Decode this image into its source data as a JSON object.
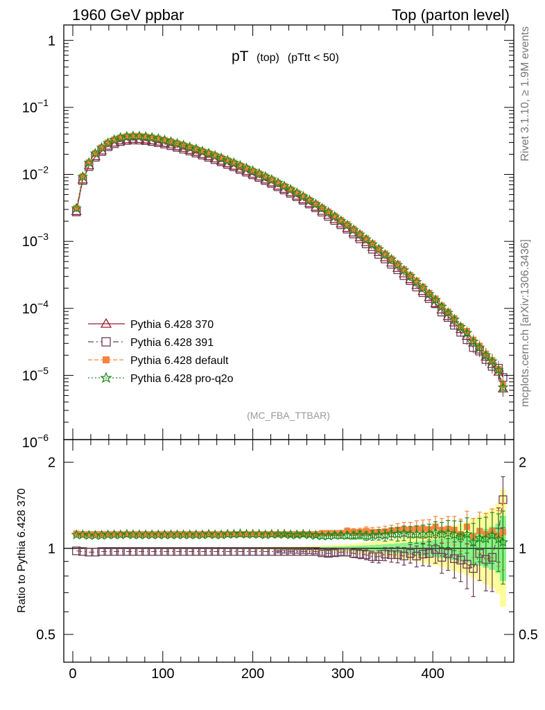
{
  "header": {
    "left": "1960 GeV ppbar",
    "right": "Top (parton level)"
  },
  "side": {
    "rivet": "Rivet 3.1.10, ≥ 1.9M events",
    "mcplots": "mcplots.cern.ch [arXiv:1306.3436]"
  },
  "chart_data": {
    "type": "line",
    "title": {
      "main": "pT",
      "sub1": "(top)",
      "sub2": "(pTtt < 50)"
    },
    "watermark": "(MC_FBA_TTBAR)",
    "xlim": [
      -10,
      490
    ],
    "x_ticks": [
      0,
      100,
      200,
      300,
      400
    ],
    "upper": {
      "yscale": "log",
      "ylim": [
        1.1e-06,
        1.7
      ],
      "y_tick_labels": [
        {
          "v": 1,
          "label": "1",
          "exp": ""
        },
        {
          "v": 0.1,
          "label": "10",
          "exp": "−1"
        },
        {
          "v": 0.01,
          "label": "10",
          "exp": "−2"
        },
        {
          "v": 0.001,
          "label": "10",
          "exp": "−3"
        },
        {
          "v": 0.0001,
          "label": "10",
          "exp": "−4"
        },
        {
          "v": 1e-05,
          "label": "10",
          "exp": "−5"
        },
        {
          "v": 1e-06,
          "label": "10",
          "exp": "−6"
        }
      ]
    },
    "lower": {
      "ylabel": "Ratio to Pythia 6.428 370",
      "yscale": "log",
      "ylim": [
        0.4,
        2.4
      ],
      "y_tick_labels": [
        {
          "v": 0.5,
          "label": "0.5"
        },
        {
          "v": 1,
          "label": "1"
        },
        {
          "v": 2,
          "label": "2"
        }
      ]
    },
    "x": [
      4,
      11,
      18,
      25,
      32,
      39,
      46,
      53,
      60,
      67,
      74,
      81,
      88,
      95,
      102,
      109,
      116,
      123,
      130,
      137,
      144,
      151,
      158,
      165,
      172,
      179,
      186,
      193,
      200,
      207,
      214,
      221,
      228,
      235,
      242,
      249,
      256,
      263,
      270,
      277,
      284,
      291,
      298,
      305,
      312,
      319,
      326,
      333,
      340,
      347,
      354,
      361,
      368,
      375,
      382,
      389,
      396,
      403,
      410,
      417,
      424,
      431,
      438,
      445,
      452,
      459,
      466,
      473,
      478
    ],
    "reference_band": {
      "name": "Pythia 6.428 370",
      "rel_err": [
        0.003,
        0.003,
        0.003,
        0.003,
        0.003,
        0.003,
        0.003,
        0.003,
        0.003,
        0.003,
        0.003,
        0.003,
        0.003,
        0.003,
        0.003,
        0.003,
        0.003,
        0.003,
        0.003,
        0.003,
        0.003,
        0.003,
        0.003,
        0.003,
        0.003,
        0.004,
        0.004,
        0.004,
        0.005,
        0.005,
        0.005,
        0.006,
        0.006,
        0.007,
        0.007,
        0.008,
        0.009,
        0.01,
        0.011,
        0.012,
        0.013,
        0.015,
        0.016,
        0.018,
        0.02,
        0.022,
        0.024,
        0.027,
        0.03,
        0.033,
        0.037,
        0.041,
        0.045,
        0.05,
        0.055,
        0.061,
        0.067,
        0.074,
        0.082,
        0.09,
        0.1,
        0.11,
        0.12,
        0.135,
        0.15,
        0.17,
        0.19,
        0.22,
        0.3
      ]
    },
    "series": [
      {
        "name": "Pythia 6.428 370",
        "color": "#9b1a2e",
        "marker": "triangle-open",
        "dash": "",
        "values": [
          0.0028,
          0.0083,
          0.0135,
          0.0185,
          0.0225,
          0.0265,
          0.0295,
          0.0318,
          0.033,
          0.0335,
          0.0334,
          0.0328,
          0.0318,
          0.0305,
          0.0291,
          0.0276,
          0.026,
          0.0245,
          0.0229,
          0.0214,
          0.0199,
          0.0185,
          0.0171,
          0.0158,
          0.0145,
          0.0133,
          0.0121,
          0.0111,
          0.0101,
          0.0092,
          0.0083,
          0.0075,
          0.0067,
          0.006,
          0.00535,
          0.00475,
          0.0042,
          0.0037,
          0.00325,
          0.00283,
          0.00246,
          0.00213,
          0.00183,
          0.00157,
          0.00134,
          0.00114,
          0.000965,
          0.000815,
          0.000685,
          0.000573,
          0.000478,
          0.000397,
          0.000328,
          0.00027,
          0.000221,
          0.00018,
          0.000146,
          0.000118,
          9.5e-05,
          7.6e-05,
          6.1e-05,
          4.85e-05,
          3.85e-05,
          3.05e-05,
          2.4e-05,
          1.88e-05,
          1.46e-05,
          1.12e-05,
          6.3e-06
        ],
        "ratio": [
          1.0,
          1.0,
          1.0,
          1.0,
          1.0,
          1.0,
          1.0,
          1.0,
          1.0,
          1.0,
          1.0,
          1.0,
          1.0,
          1.0,
          1.0,
          1.0,
          1.0,
          1.0,
          1.0,
          1.0,
          1.0,
          1.0,
          1.0,
          1.0,
          1.0,
          1.0,
          1.0,
          1.0,
          1.0,
          1.0,
          1.0,
          1.0,
          1.0,
          1.0,
          1.0,
          1.0,
          1.0,
          1.0,
          1.0,
          1.0,
          1.0,
          1.0,
          1.0,
          1.0,
          1.0,
          1.0,
          1.0,
          1.0,
          1.0,
          1.0,
          1.0,
          1.0,
          1.0,
          1.0,
          1.0,
          1.0,
          1.0,
          1.0,
          1.0,
          1.0,
          1.0,
          1.0,
          1.0,
          1.0,
          1.0,
          1.0,
          1.0,
          1.0,
          1.0
        ]
      },
      {
        "name": "Pythia 6.428 391",
        "color": "#6b3a52",
        "marker": "square-open",
        "dash": "8,4,2,4",
        "values": [
          0.00275,
          0.0081,
          0.0131,
          0.018,
          0.0219,
          0.0258,
          0.0287,
          0.0309,
          0.0321,
          0.0326,
          0.0325,
          0.0319,
          0.0309,
          0.0297,
          0.0283,
          0.0268,
          0.0253,
          0.0238,
          0.0223,
          0.0208,
          0.0194,
          0.018,
          0.0166,
          0.0154,
          0.0141,
          0.013,
          0.0118,
          0.0108,
          0.00985,
          0.00898,
          0.00809,
          0.00731,
          0.00653,
          0.00585,
          0.00522,
          0.00463,
          0.0041,
          0.00361,
          0.00317,
          0.00273,
          0.00236,
          0.00205,
          0.00177,
          0.00152,
          0.00129,
          0.00109,
          0.000917,
          0.000763,
          0.000639,
          0.000546,
          0.000455,
          0.000377,
          0.000308,
          0.000259,
          0.000208,
          0.000172,
          0.00014,
          0.000117,
          8.8e-05,
          7.3e-05,
          5.6e-05,
          4.4e-05,
          3.4e-05,
          2.6e-05,
          2.3e-05,
          1.72e-05,
          1.36e-05,
          1.28e-05,
          9.3e-06
        ],
        "ratio": [
          0.98,
          0.975,
          0.97,
          0.97,
          0.975,
          0.975,
          0.975,
          0.975,
          0.975,
          0.975,
          0.975,
          0.975,
          0.975,
          0.975,
          0.975,
          0.975,
          0.975,
          0.975,
          0.975,
          0.975,
          0.975,
          0.975,
          0.975,
          0.975,
          0.975,
          0.975,
          0.975,
          0.975,
          0.975,
          0.975,
          0.975,
          0.975,
          0.975,
          0.975,
          0.975,
          0.975,
          0.975,
          0.975,
          0.975,
          0.965,
          0.96,
          0.965,
          0.97,
          0.97,
          0.96,
          0.955,
          0.95,
          0.935,
          0.935,
          0.955,
          0.95,
          0.95,
          0.94,
          0.96,
          0.94,
          0.955,
          0.96,
          0.99,
          0.93,
          0.96,
          0.92,
          0.91,
          0.88,
          0.85,
          0.96,
          0.915,
          0.93,
          1.14,
          1.48
        ],
        "ratio_err": [
          0.005,
          0.005,
          0.005,
          0.005,
          0.005,
          0.005,
          0.005,
          0.005,
          0.005,
          0.005,
          0.005,
          0.005,
          0.005,
          0.005,
          0.005,
          0.005,
          0.005,
          0.005,
          0.005,
          0.005,
          0.005,
          0.005,
          0.005,
          0.005,
          0.006,
          0.006,
          0.007,
          0.007,
          0.008,
          0.008,
          0.009,
          0.01,
          0.011,
          0.012,
          0.013,
          0.014,
          0.015,
          0.016,
          0.018,
          0.02,
          0.022,
          0.024,
          0.026,
          0.029,
          0.032,
          0.035,
          0.038,
          0.042,
          0.046,
          0.05,
          0.055,
          0.06,
          0.066,
          0.072,
          0.079,
          0.086,
          0.094,
          0.103,
          0.112,
          0.122,
          0.133,
          0.145,
          0.158,
          0.172,
          0.188,
          0.205,
          0.224,
          0.245,
          0.3
        ]
      },
      {
        "name": "Pythia 6.428 default",
        "color": "#f7833c",
        "marker": "square-filled",
        "dash": "6,3",
        "values": [
          0.00315,
          0.0093,
          0.0151,
          0.0207,
          0.0252,
          0.0297,
          0.033,
          0.0356,
          0.037,
          0.0375,
          0.0374,
          0.0367,
          0.0356,
          0.0342,
          0.0326,
          0.0309,
          0.0291,
          0.0274,
          0.0256,
          0.024,
          0.0223,
          0.0207,
          0.0192,
          0.0177,
          0.0162,
          0.0149,
          0.0136,
          0.0124,
          0.0113,
          0.0103,
          0.0093,
          0.0084,
          0.0075,
          0.00672,
          0.00599,
          0.00532,
          0.0047,
          0.00414,
          0.00364,
          0.00319,
          0.00278,
          0.00241,
          0.00207,
          0.0018,
          0.00153,
          0.0013,
          0.00111,
          0.000933,
          0.000784,
          0.000656,
          0.000551,
          0.000461,
          0.000382,
          0.000313,
          0.000259,
          0.00021,
          0.00017,
          0.00014,
          0.00011,
          8.9e-05,
          7.1e-05,
          5.4e-05,
          4.6e-05,
          3.4e-05,
          2.77e-05,
          2.1e-05,
          1.68e-05,
          1.24e-05,
          7.2e-06
        ],
        "ratio": [
          1.125,
          1.12,
          1.12,
          1.12,
          1.12,
          1.12,
          1.12,
          1.12,
          1.12,
          1.12,
          1.12,
          1.12,
          1.12,
          1.12,
          1.12,
          1.12,
          1.12,
          1.12,
          1.12,
          1.12,
          1.12,
          1.12,
          1.12,
          1.12,
          1.12,
          1.12,
          1.12,
          1.12,
          1.12,
          1.12,
          1.12,
          1.12,
          1.12,
          1.12,
          1.12,
          1.12,
          1.12,
          1.12,
          1.12,
          1.13,
          1.13,
          1.13,
          1.13,
          1.15,
          1.14,
          1.14,
          1.15,
          1.14,
          1.14,
          1.145,
          1.15,
          1.16,
          1.165,
          1.16,
          1.17,
          1.17,
          1.165,
          1.19,
          1.16,
          1.17,
          1.16,
          1.12,
          1.19,
          1.1,
          1.15,
          1.12,
          1.15,
          1.11,
          1.14
        ],
        "ratio_err": [
          0.005,
          0.005,
          0.005,
          0.005,
          0.005,
          0.005,
          0.005,
          0.005,
          0.005,
          0.005,
          0.005,
          0.005,
          0.005,
          0.005,
          0.005,
          0.005,
          0.005,
          0.005,
          0.005,
          0.005,
          0.005,
          0.005,
          0.005,
          0.005,
          0.006,
          0.006,
          0.007,
          0.007,
          0.008,
          0.008,
          0.009,
          0.01,
          0.011,
          0.012,
          0.013,
          0.014,
          0.015,
          0.016,
          0.018,
          0.02,
          0.022,
          0.024,
          0.026,
          0.029,
          0.032,
          0.035,
          0.038,
          0.042,
          0.046,
          0.05,
          0.055,
          0.06,
          0.066,
          0.072,
          0.079,
          0.086,
          0.094,
          0.103,
          0.112,
          0.122,
          0.133,
          0.145,
          0.158,
          0.172,
          0.188,
          0.205,
          0.224,
          0.245,
          0.3
        ]
      },
      {
        "name": "Pythia 6.428 pro-q2o",
        "color": "#1a8a1a",
        "marker": "star-open",
        "dash": "2,3",
        "values": [
          0.00312,
          0.00925,
          0.015,
          0.0206,
          0.0251,
          0.0296,
          0.0329,
          0.0355,
          0.0369,
          0.0374,
          0.0373,
          0.0366,
          0.0355,
          0.0341,
          0.0325,
          0.0308,
          0.029,
          0.0273,
          0.0255,
          0.0239,
          0.0222,
          0.0207,
          0.0191,
          0.0176,
          0.0162,
          0.0149,
          0.0136,
          0.0124,
          0.0113,
          0.0103,
          0.00927,
          0.00838,
          0.00751,
          0.00671,
          0.00597,
          0.0053,
          0.00469,
          0.00413,
          0.00361,
          0.00313,
          0.00272,
          0.00236,
          0.00203,
          0.00174,
          0.00149,
          0.00127,
          0.00107,
          0.000904,
          0.000764,
          0.000637,
          0.000538,
          0.000445,
          0.00037,
          0.000303,
          0.000247,
          0.000202,
          0.000164,
          0.000134,
          0.000106,
          8.6e-05,
          6.8e-05,
          5.3e-05,
          4.3e-05,
          3.2e-05,
          2.6e-05,
          2e-05,
          1.62e-05,
          1.2e-05,
          6.6e-06
        ],
        "ratio": [
          1.115,
          1.115,
          1.11,
          1.11,
          1.11,
          1.115,
          1.115,
          1.115,
          1.12,
          1.115,
          1.115,
          1.115,
          1.115,
          1.115,
          1.115,
          1.115,
          1.115,
          1.115,
          1.115,
          1.115,
          1.115,
          1.12,
          1.115,
          1.115,
          1.12,
          1.12,
          1.125,
          1.12,
          1.12,
          1.12,
          1.115,
          1.12,
          1.12,
          1.12,
          1.115,
          1.115,
          1.12,
          1.115,
          1.11,
          1.105,
          1.105,
          1.11,
          1.11,
          1.11,
          1.11,
          1.115,
          1.105,
          1.11,
          1.115,
          1.11,
          1.125,
          1.12,
          1.13,
          1.12,
          1.12,
          1.12,
          1.12,
          1.135,
          1.12,
          1.13,
          1.115,
          1.1,
          1.12,
          1.05,
          1.085,
          1.08,
          1.11,
          1.075,
          1.05
        ],
        "ratio_err": [
          0.005,
          0.005,
          0.005,
          0.005,
          0.005,
          0.005,
          0.005,
          0.005,
          0.005,
          0.005,
          0.005,
          0.005,
          0.005,
          0.005,
          0.005,
          0.005,
          0.005,
          0.005,
          0.005,
          0.005,
          0.005,
          0.005,
          0.005,
          0.005,
          0.006,
          0.006,
          0.007,
          0.007,
          0.008,
          0.008,
          0.009,
          0.01,
          0.011,
          0.012,
          0.013,
          0.014,
          0.015,
          0.016,
          0.018,
          0.02,
          0.022,
          0.024,
          0.026,
          0.029,
          0.032,
          0.035,
          0.038,
          0.042,
          0.046,
          0.05,
          0.055,
          0.06,
          0.066,
          0.072,
          0.079,
          0.086,
          0.094,
          0.103,
          0.112,
          0.122,
          0.133,
          0.145,
          0.158,
          0.172,
          0.188,
          0.205,
          0.224,
          0.245,
          0.3
        ]
      }
    ]
  }
}
